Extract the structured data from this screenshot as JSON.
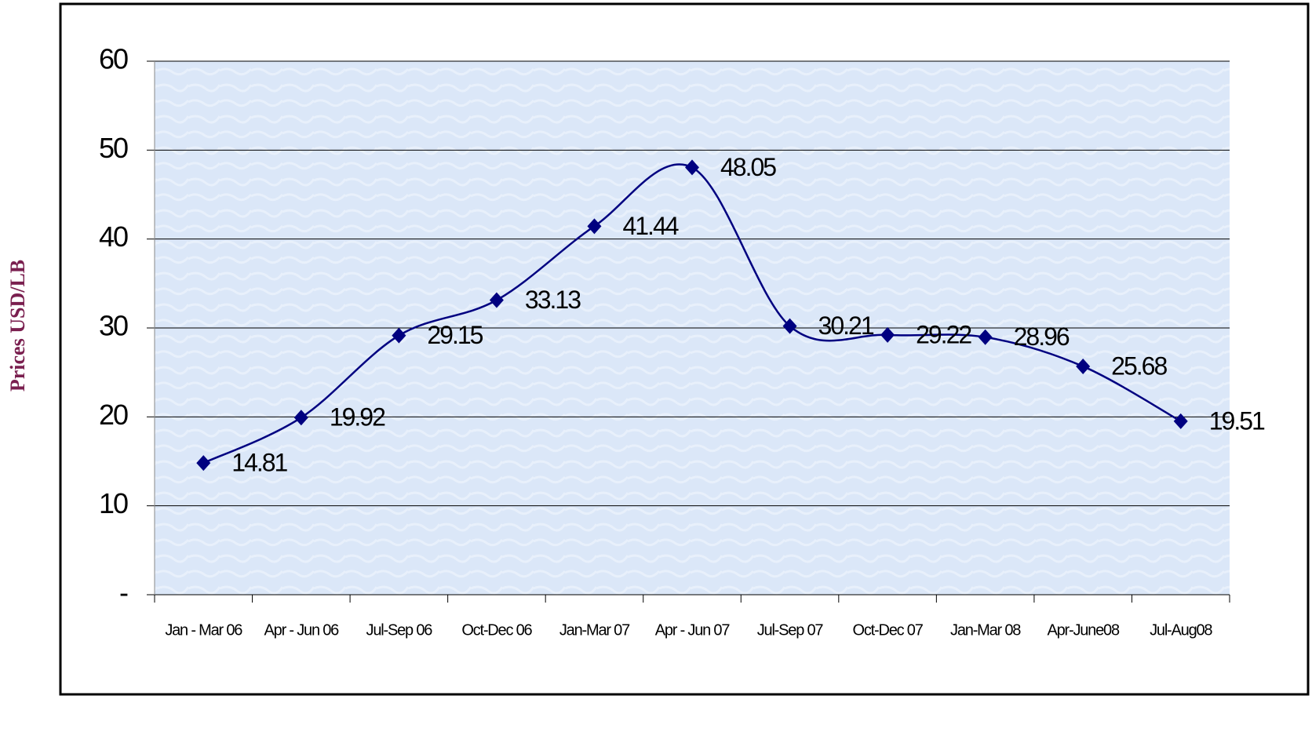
{
  "chart_data": {
    "type": "line",
    "y_label": "Prices USD/LB",
    "categories": [
      "Jan - Mar 06",
      "Apr - Jun 06",
      "Jul-Sep 06",
      "Oct-Dec 06",
      "Jan-Mar 07",
      "Apr - Jun 07",
      "Jul-Sep 07",
      "Oct-Dec 07",
      "Jan-Mar 08",
      "Apr-June08",
      "Jul-Aug08"
    ],
    "values": [
      14.81,
      19.92,
      29.15,
      33.13,
      41.44,
      48.05,
      30.21,
      29.22,
      28.96,
      25.68,
      19.51
    ],
    "color": "#000080",
    "ylim": [
      0,
      60
    ],
    "yticks": [
      {
        "value": 0,
        "label": "-"
      },
      10,
      20,
      30,
      40,
      50,
      60
    ],
    "grid": true
  }
}
